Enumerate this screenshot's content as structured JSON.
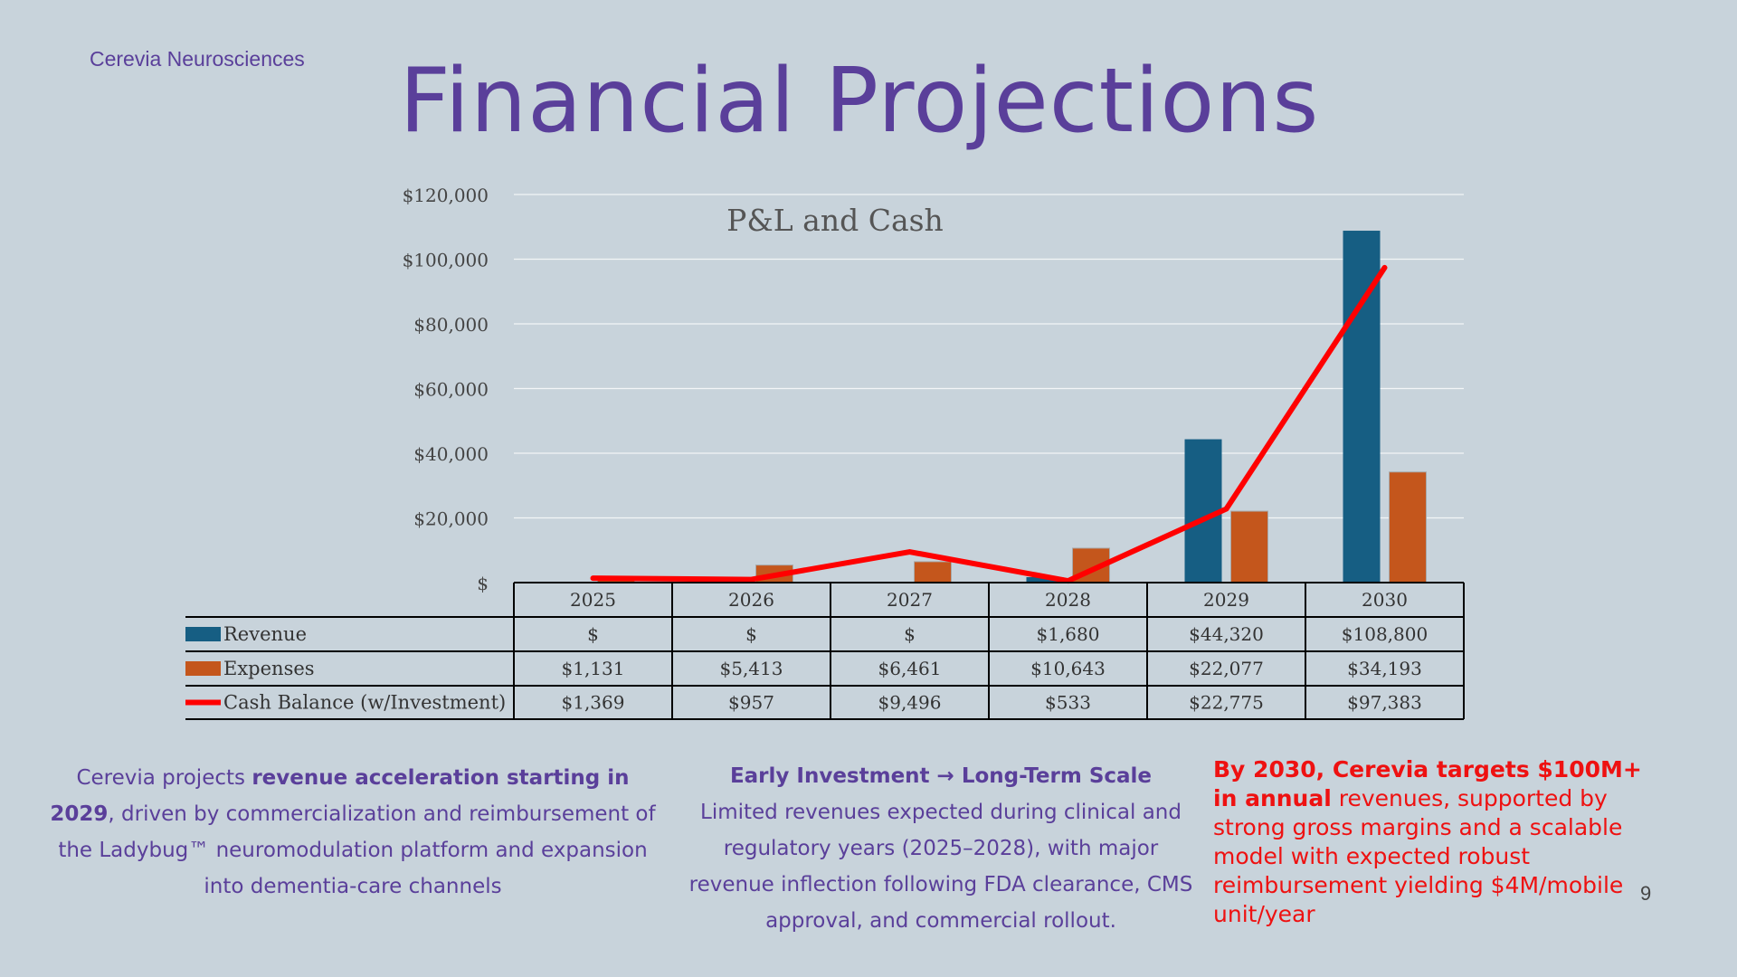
{
  "header": {
    "company": "Cerevia Neurosciences",
    "title": "Financial Projections"
  },
  "chart_data": {
    "type": "bar",
    "title": "P&L and Cash",
    "categories": [
      "2025",
      "2026",
      "2027",
      "2028",
      "2029",
      "2030"
    ],
    "ylim": [
      0,
      120000
    ],
    "y_ticks": [
      "$",
      "$20,000",
      "$40,000",
      "$60,000",
      "$80,000",
      "$100,000",
      "$120,000"
    ],
    "grid": true,
    "series": [
      {
        "name": "Revenue",
        "kind": "bar",
        "color": "#165e83",
        "values": [
          0,
          0,
          0,
          1680,
          44320,
          108800
        ],
        "labels": [
          "$",
          "$",
          "$",
          "$1,680",
          "$44,320",
          "$108,800"
        ]
      },
      {
        "name": "Expenses",
        "kind": "bar",
        "color": "#c4561c",
        "values": [
          1131,
          5413,
          6461,
          10643,
          22077,
          34193
        ],
        "labels": [
          "$1,131",
          "$5,413",
          "$6,461",
          "$10,643",
          "$22,077",
          "$34,193"
        ]
      },
      {
        "name": "Cash Balance (w/Investment)",
        "kind": "line",
        "color": "#ff0000",
        "values": [
          1369,
          957,
          9496,
          533,
          22775,
          97383
        ],
        "labels": [
          "$1,369",
          "$957",
          "$9,496",
          "$533",
          "$22,775",
          "$97,383"
        ]
      }
    ]
  },
  "notes": {
    "n1_pre": "Cerevia projects ",
    "n1_bold": "revenue acceleration starting in 2029",
    "n1_post": ", driven by commercialization and reimbursement of the Ladybug™ neuromodulation platform and expansion into dementia-care channels",
    "n2_head": "Early Investment → Long-Term Scale",
    "n2_body": "Limited revenues expected during clinical and regulatory years (2025–2028), with major revenue inflection following FDA clearance, CMS approval, and commercial rollout.",
    "n3_bold": "By 2030, Cerevia targets $100M+ in annual",
    "n3_rest": " revenues, supported by strong gross margins and a scalable model with expected robust reimbursement yielding $4M/mobile unit/year"
  },
  "page_number": "9"
}
